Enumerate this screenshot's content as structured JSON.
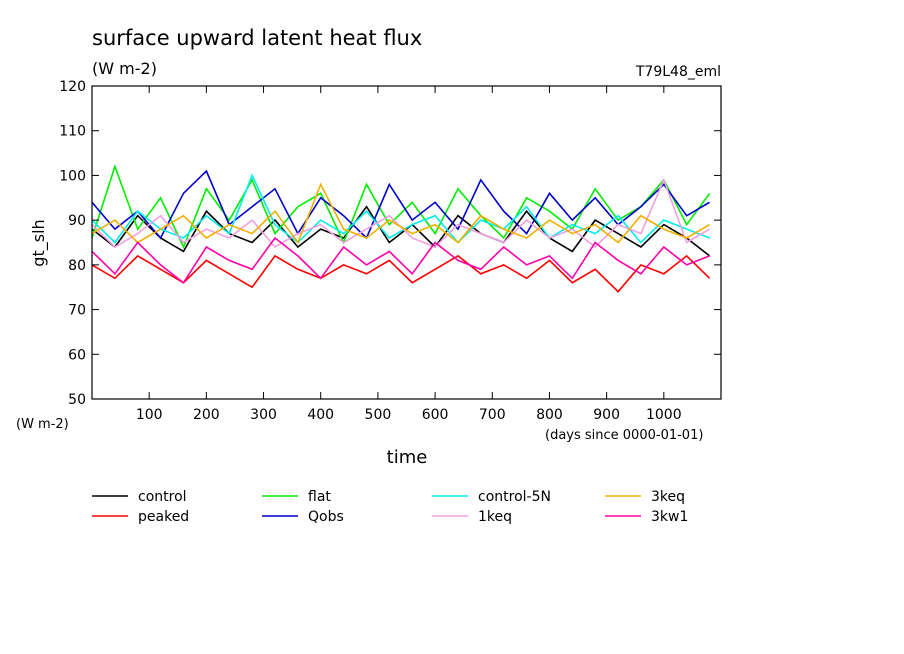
{
  "chart_data": {
    "type": "line",
    "title": "surface upward latent heat flux",
    "units": "(W m-2)",
    "run_label": "T79L48_eml",
    "ylabel": "gt_slh",
    "ylabel_units": "(W m-2)",
    "xlabel": "time",
    "xlabel_units": "(days since 0000-01-01)",
    "xlim": [
      0,
      1100
    ],
    "ylim": [
      50,
      120
    ],
    "xticks": [
      100,
      200,
      300,
      400,
      500,
      600,
      700,
      800,
      900,
      1000
    ],
    "yticks": [
      50,
      60,
      70,
      80,
      90,
      100,
      110,
      120
    ],
    "x": [
      0,
      40,
      80,
      120,
      160,
      200,
      240,
      280,
      320,
      360,
      400,
      440,
      480,
      520,
      560,
      600,
      640,
      680,
      720,
      760,
      800,
      840,
      880,
      920,
      960,
      1000,
      1040,
      1080
    ],
    "series": [
      {
        "name": "control",
        "color": "#000000",
        "values": [
          88,
          84,
          91,
          86,
          83,
          92,
          87,
          85,
          90,
          84,
          88,
          86,
          93,
          85,
          89,
          84,
          91,
          87,
          85,
          92,
          86,
          83,
          90,
          87,
          84,
          89,
          86,
          82
        ]
      },
      {
        "name": "peaked",
        "color": "#ff0000",
        "values": [
          80,
          77,
          82,
          79,
          76,
          81,
          78,
          75,
          82,
          79,
          77,
          80,
          78,
          81,
          76,
          79,
          82,
          78,
          80,
          77,
          81,
          76,
          79,
          74,
          80,
          78,
          82,
          77
        ]
      },
      {
        "name": "flat",
        "color": "#00ee00",
        "values": [
          86,
          102,
          88,
          95,
          84,
          97,
          90,
          99,
          87,
          93,
          96,
          85,
          98,
          89,
          94,
          87,
          97,
          91,
          86,
          95,
          92,
          88,
          97,
          90,
          93,
          99,
          89,
          96
        ]
      },
      {
        "name": "Qobs",
        "color": "#0000cc",
        "values": [
          94,
          88,
          92,
          86,
          96,
          101,
          89,
          93,
          97,
          87,
          95,
          91,
          86,
          98,
          90,
          94,
          88,
          99,
          92,
          87,
          96,
          90,
          95,
          89,
          93,
          98,
          91,
          94
        ]
      },
      {
        "name": "control-5N",
        "color": "#00eeee",
        "values": [
          90,
          85,
          92,
          88,
          86,
          91,
          87,
          100,
          89,
          85,
          90,
          87,
          92,
          86,
          89,
          91,
          85,
          90,
          88,
          93,
          86,
          89,
          87,
          91,
          85,
          90,
          88,
          86
        ]
      },
      {
        "name": "1keq",
        "color": "#f0a0e0",
        "values": [
          89,
          84,
          87,
          91,
          85,
          88,
          86,
          90,
          84,
          87,
          89,
          85,
          88,
          91,
          86,
          84,
          89,
          87,
          85,
          90,
          86,
          88,
          84,
          89,
          87,
          99,
          85,
          88
        ]
      },
      {
        "name": "3keq",
        "color": "#f0b000",
        "values": [
          87,
          90,
          85,
          88,
          91,
          86,
          89,
          87,
          92,
          85,
          98,
          88,
          86,
          90,
          87,
          89,
          85,
          91,
          88,
          86,
          90,
          87,
          89,
          85,
          91,
          88,
          86,
          89
        ]
      },
      {
        "name": "3kw1",
        "color": "#ff00aa",
        "values": [
          83,
          78,
          85,
          80,
          76,
          84,
          81,
          79,
          86,
          82,
          77,
          84,
          80,
          83,
          78,
          85,
          81,
          79,
          84,
          80,
          82,
          77,
          85,
          81,
          78,
          84,
          80,
          82
        ]
      }
    ]
  }
}
